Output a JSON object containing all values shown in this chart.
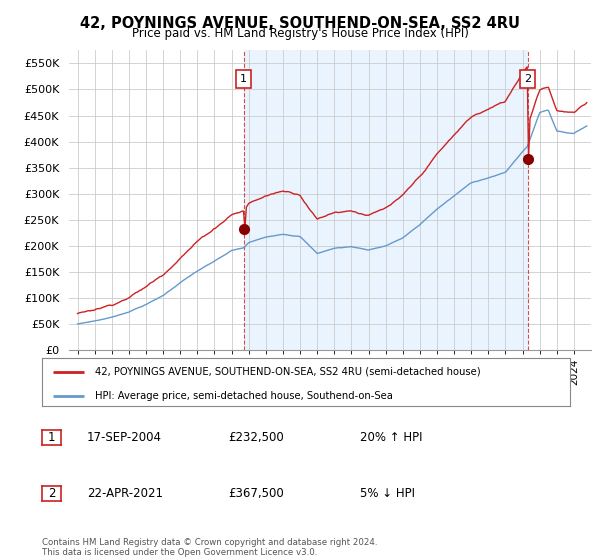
{
  "title": "42, POYNINGS AVENUE, SOUTHEND-ON-SEA, SS2 4RU",
  "subtitle": "Price paid vs. HM Land Registry's House Price Index (HPI)",
  "ytick_labels": [
    "£0",
    "£50K",
    "£100K",
    "£150K",
    "£200K",
    "£250K",
    "£300K",
    "£350K",
    "£400K",
    "£450K",
    "£500K",
    "£550K"
  ],
  "yticks": [
    0,
    50000,
    100000,
    150000,
    200000,
    250000,
    300000,
    350000,
    400000,
    450000,
    500000,
    550000
  ],
  "legend_label_red": "42, POYNINGS AVENUE, SOUTHEND-ON-SEA, SS2 4RU (semi-detached house)",
  "legend_label_blue": "HPI: Average price, semi-detached house, Southend-on-Sea",
  "annotation1_date": "17-SEP-2004",
  "annotation1_price": "£232,500",
  "annotation1_hpi": "20% ↑ HPI",
  "annotation2_date": "22-APR-2021",
  "annotation2_price": "£367,500",
  "annotation2_hpi": "5% ↓ HPI",
  "footer": "Contains HM Land Registry data © Crown copyright and database right 2024.\nThis data is licensed under the Open Government Licence v3.0.",
  "red_color": "#cc2222",
  "blue_color": "#6699cc",
  "blue_fill_color": "#ddeeff",
  "grid_color": "#cccccc",
  "background_color": "#ffffff",
  "plot_bg_color": "#ffffff",
  "sale1_year": 2004.71,
  "sale1_price": 232500,
  "sale2_year": 2021.29,
  "sale2_price": 367500
}
